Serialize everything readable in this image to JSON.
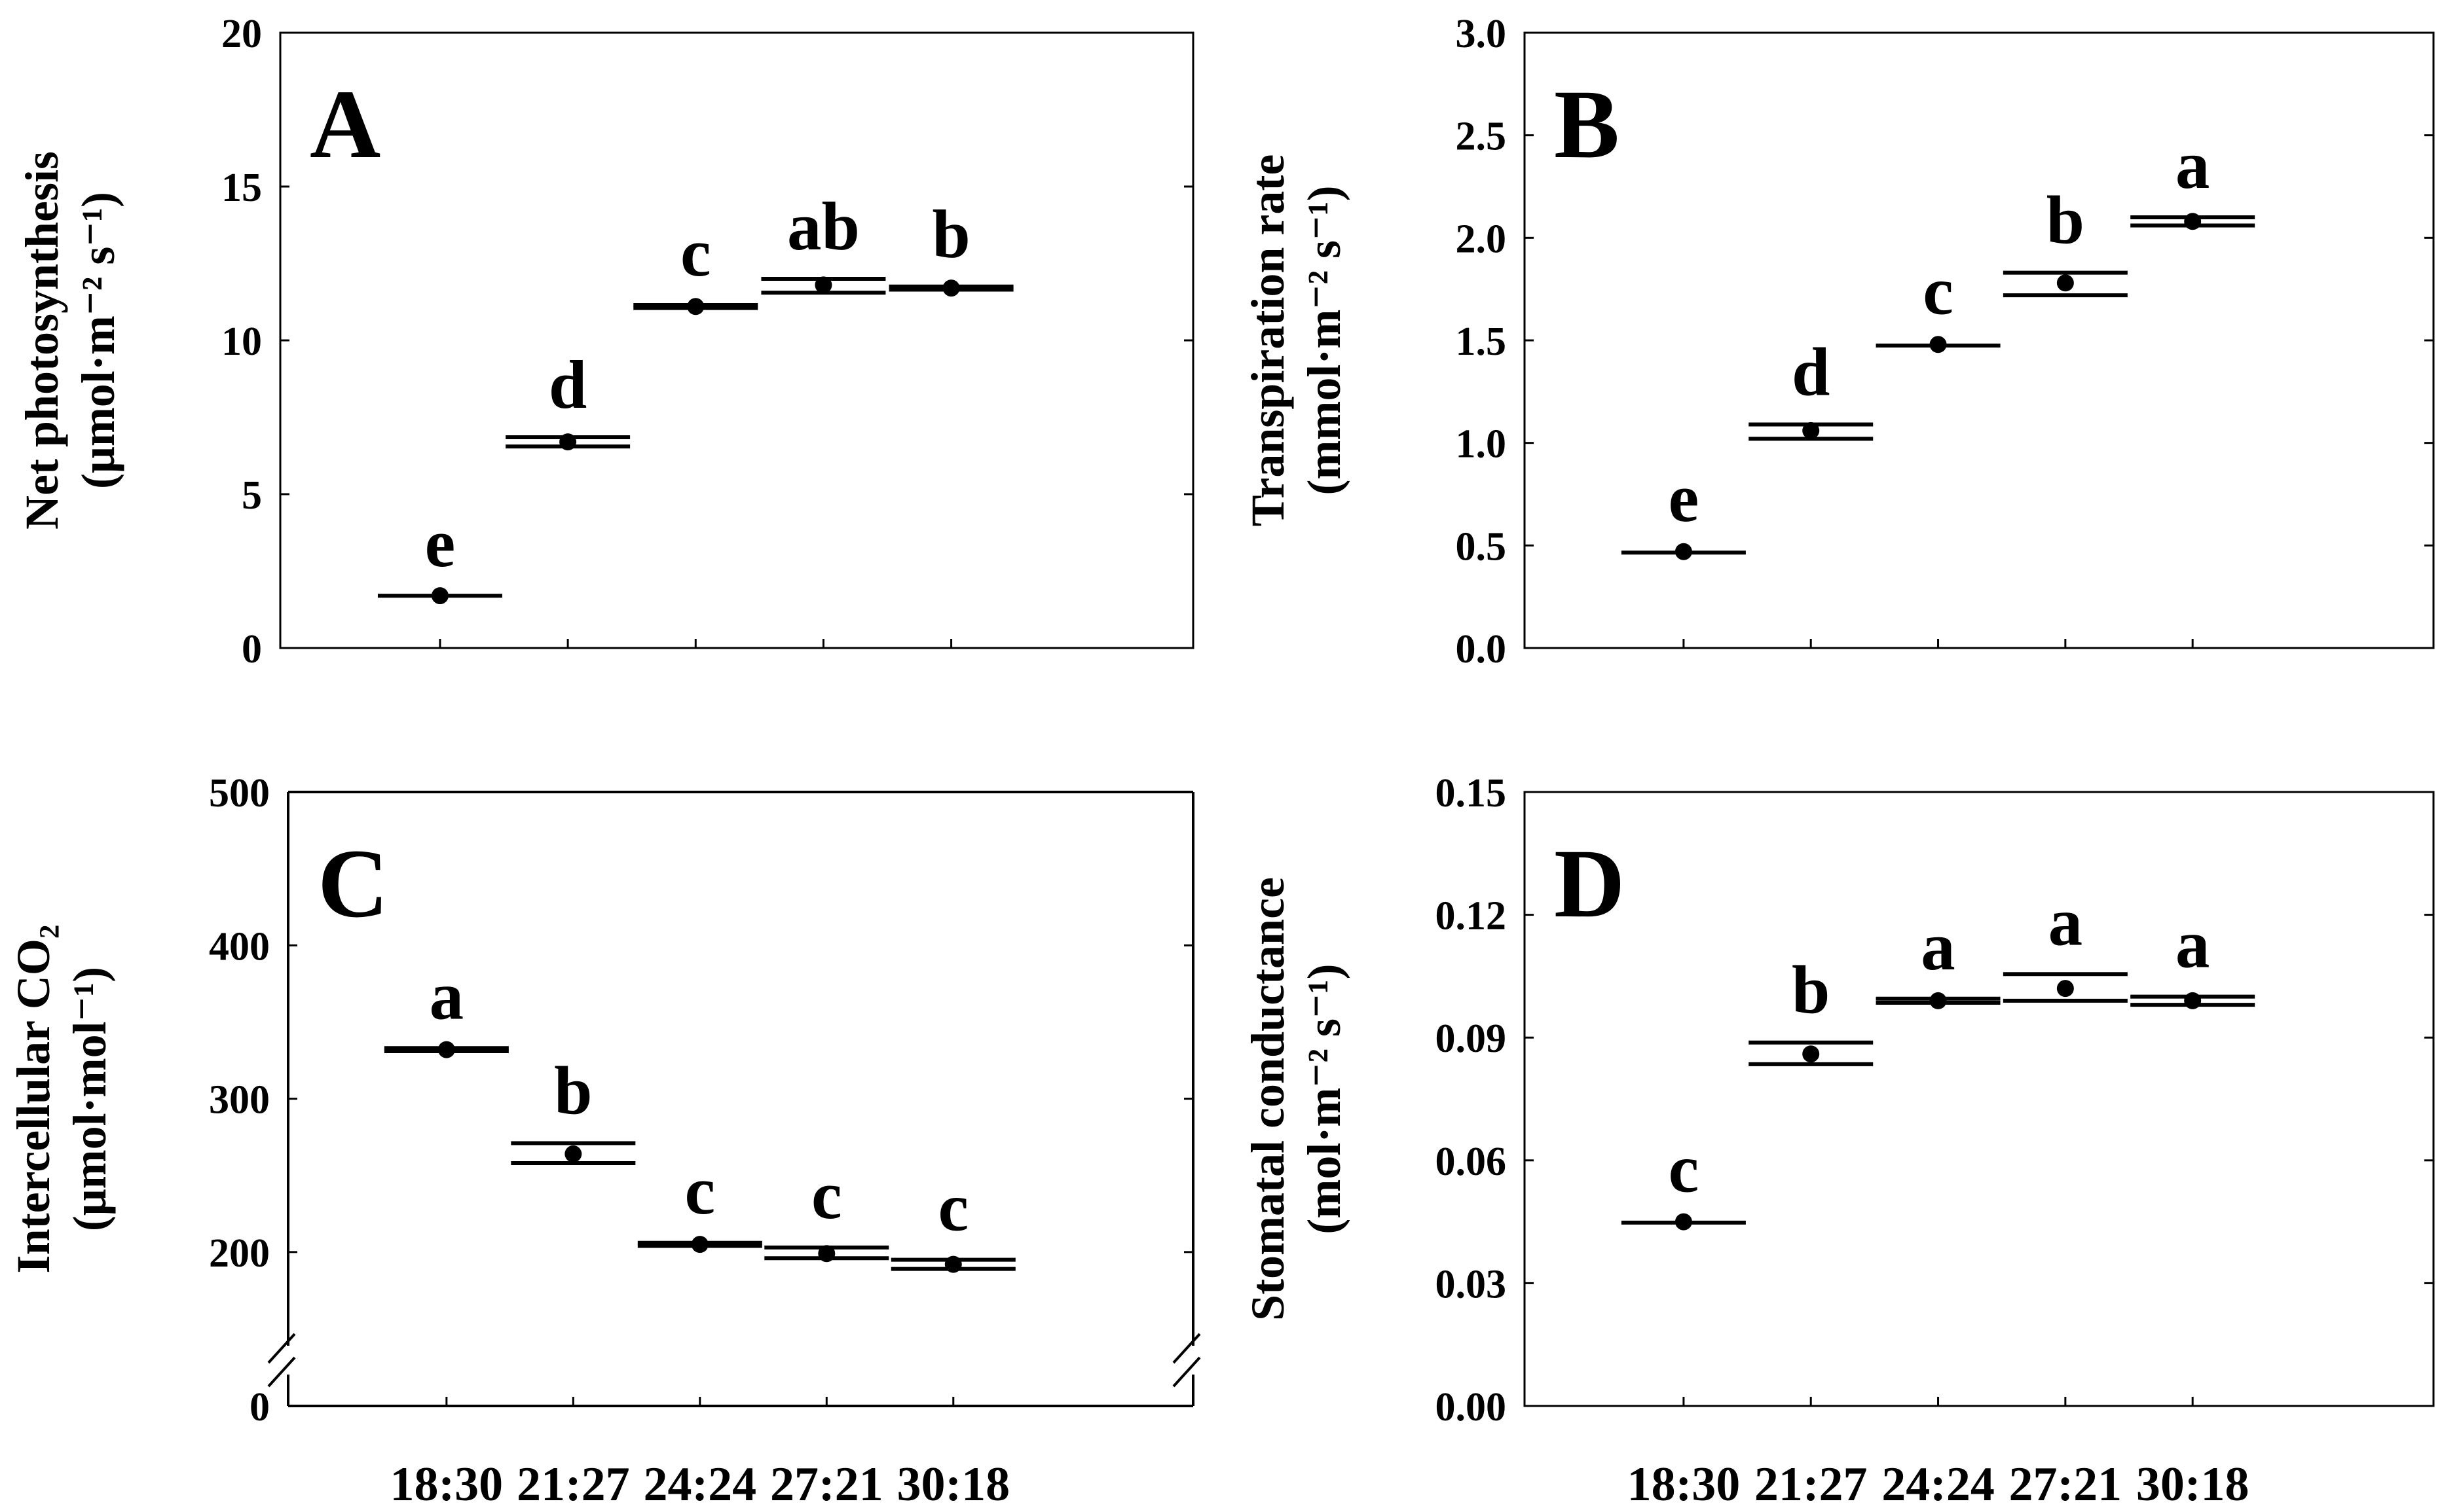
{
  "chart_data": [
    {
      "type": "scatter",
      "panel": "A",
      "ylabel_line1": "Net photosynthesis",
      "ylabel_line2": "(μmol·m⁻² s⁻¹)",
      "ylim": [
        0,
        20
      ],
      "yticks": [
        0,
        5,
        10,
        15,
        20
      ],
      "ytick_labels": [
        "0",
        "5",
        "10",
        "15",
        "20"
      ],
      "categories": [
        "18:30",
        "21:27",
        "24:24",
        "27:21",
        "30:18"
      ],
      "values": [
        1.7,
        6.7,
        11.1,
        11.8,
        11.7
      ],
      "err_low": [
        1.7,
        6.55,
        11.05,
        11.55,
        11.65
      ],
      "err_high": [
        1.7,
        6.85,
        11.15,
        12.0,
        11.75
      ],
      "sig": [
        "e",
        "d",
        "c",
        "ab",
        "b"
      ]
    },
    {
      "type": "scatter",
      "panel": "B",
      "ylabel_line1": "Transpiration rate",
      "ylabel_line2": "(mmol·m⁻² s⁻¹)",
      "ylim": [
        0,
        3
      ],
      "yticks": [
        0,
        0.5,
        1,
        1.5,
        2,
        2.5,
        3
      ],
      "ytick_labels": [
        "0.0",
        "0.5",
        "1.0",
        "1.5",
        "2.0",
        "2.5",
        "3.0"
      ],
      "categories": [
        "18:30",
        "21:27",
        "24:24",
        "27:21",
        "30:18"
      ],
      "values": [
        0.47,
        1.06,
        1.48,
        1.78,
        2.08
      ],
      "err_low": [
        0.465,
        1.02,
        1.475,
        1.72,
        2.06
      ],
      "err_high": [
        0.475,
        1.09,
        1.485,
        1.83,
        2.1
      ],
      "sig": [
        "e",
        "d",
        "c",
        "b",
        "a"
      ]
    },
    {
      "type": "scatter",
      "panel": "C",
      "ylabel_line1": "Intercellular CO₂",
      "ylabel_line2": "(μmol·mol⁻¹)",
      "ylim": [
        0,
        500
      ],
      "axis_break": [
        0,
        150
      ],
      "yticks": [
        0,
        200,
        300,
        400,
        500
      ],
      "ytick_labels": [
        "0",
        "200",
        "300",
        "400",
        "500"
      ],
      "categories": [
        "18:30",
        "21:27",
        "24:24",
        "27:21",
        "30:18"
      ],
      "values": [
        332,
        264,
        205,
        199,
        192
      ],
      "err_low": [
        331,
        258,
        204,
        196,
        189
      ],
      "err_high": [
        333,
        271,
        206,
        203,
        195
      ],
      "sig": [
        "a",
        "b",
        "c",
        "c",
        "c"
      ]
    },
    {
      "type": "scatter",
      "panel": "D",
      "ylabel_line1": "Stomatal conductance",
      "ylabel_line2": "(mol·m⁻² s⁻¹)",
      "ylim": [
        0,
        0.15
      ],
      "yticks": [
        0,
        0.03,
        0.06,
        0.09,
        0.12,
        0.15
      ],
      "ytick_labels": [
        "0.00",
        "0.03",
        "0.06",
        "0.09",
        "0.12",
        "0.15"
      ],
      "categories": [
        "18:30",
        "21:27",
        "24:24",
        "27:21",
        "30:18"
      ],
      "values": [
        0.045,
        0.086,
        0.099,
        0.102,
        0.099
      ],
      "err_low": [
        0.0448,
        0.0835,
        0.0985,
        0.099,
        0.098
      ],
      "err_high": [
        0.0452,
        0.0888,
        0.0995,
        0.1055,
        0.1
      ],
      "sig": [
        "c",
        "b",
        "a",
        "a",
        "a"
      ]
    }
  ]
}
